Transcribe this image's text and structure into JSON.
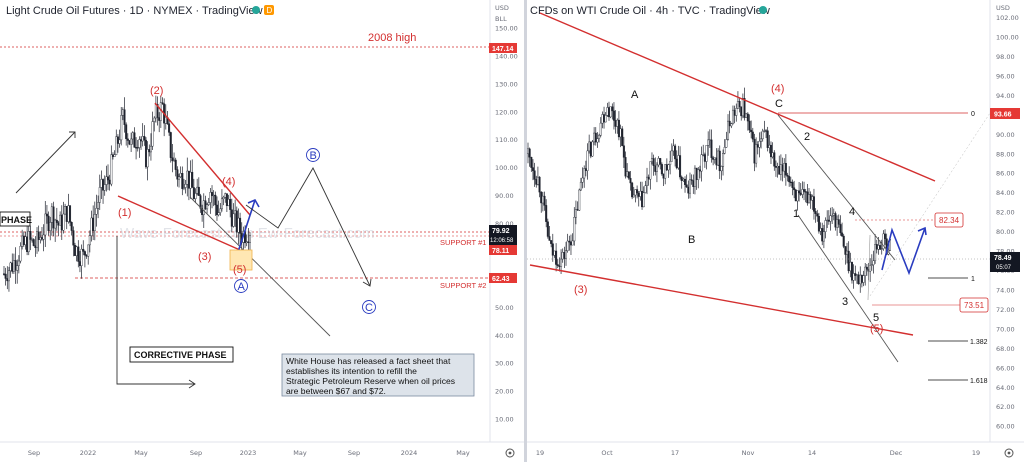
{
  "left_chart": {
    "title": "Light Crude Oil Futures · 1D · NYMEX · TradingView",
    "currency": "USD",
    "axis_mode": "BLL",
    "annotation_2008": "2008 high",
    "label_corrective": "CORRECTIVE PHASE",
    "label_phase": "PHASE",
    "support_1": "SUPPORT #1",
    "support_2": "SUPPORT #2",
    "price_badge_top": "147.14",
    "price_badge_last": "79.92",
    "countdown": "12:06:58",
    "price_badge_support": "78.11",
    "price_badge_low": "62.43",
    "watermark": "Wave-Forecast.com Ew-Forecast.com",
    "note": [
      "White House has released a fact sheet that",
      "establishes its intention to refill the",
      "Strategic Petroleum Reserve when oil prices",
      "are between $67 and $72."
    ],
    "wave_labels": {
      "w1": "(1)",
      "w2": "(2)",
      "w3": "(3)",
      "w4": "(4)",
      "w5": "(5)",
      "A": "A",
      "B": "B",
      "C": "C"
    }
  },
  "right_chart": {
    "title": "CFDs on WTI Crude Oil · 4h · TVC · TradingView",
    "currency": "USD",
    "price_badge_top": "93.66",
    "price_badge_last": "78.49",
    "countdown": "05:07",
    "box_1": "82.34",
    "box_2": "73.51",
    "fib_levels": [
      "0",
      "1",
      "1.382",
      "1.618"
    ],
    "wave_labels": {
      "w3": "(3)",
      "w4": "(4)",
      "w5": "(5)",
      "A": "A",
      "B": "B",
      "C": "C",
      "i1": "1",
      "i2": "2",
      "i3": "3",
      "i4": "4",
      "i5": "5"
    }
  },
  "chart_data": [
    {
      "type": "line",
      "title": "Light Crude Oil Futures · 1D · NYMEX · TradingView",
      "ylabel": "USD",
      "ylim": [
        0,
        160
      ],
      "y_ticks": [
        10,
        20,
        30,
        40,
        50,
        60,
        70,
        80,
        90,
        100,
        110,
        120,
        130,
        140,
        150
      ],
      "x_ticks": [
        "Sep",
        "2022",
        "May",
        "Sep",
        "2023",
        "May",
        "Sep",
        "2024",
        "May"
      ],
      "series": [
        {
          "values": [
            62,
            65,
            70,
            74,
            72,
            78,
            84,
            79,
            85,
            71,
            68,
            78,
            90,
            95,
            105,
            118,
            108,
            112,
            103,
            118,
            122,
            106,
            96,
            98,
            90,
            87,
            92,
            84,
            89,
            81,
            76,
            78
          ]
        }
      ],
      "levels": [
        {
          "label": "2008 high",
          "value": 147.14
        },
        {
          "label": "SUPPORT #1",
          "value": 78.11
        },
        {
          "label": "SUPPORT #2",
          "value": 62.43
        }
      ]
    },
    {
      "type": "line",
      "title": "CFDs on WTI Crude Oil · 4h · TVC · TradingView",
      "ylabel": "USD",
      "ylim": [
        57,
        104
      ],
      "y_ticks": [
        60,
        62,
        64,
        66,
        68,
        70,
        72,
        74,
        76,
        78,
        80,
        82,
        84,
        86,
        88,
        90,
        92,
        94,
        96,
        98,
        100,
        102
      ],
      "x_ticks": [
        "19",
        "Oct",
        "17",
        "Nov",
        "14",
        "Dec",
        "19"
      ],
      "series": [
        {
          "values": [
            88,
            85,
            78,
            77,
            80,
            87,
            90,
            93,
            91,
            84,
            83,
            87,
            86,
            88,
            84,
            86,
            89,
            87,
            92,
            93,
            88,
            90,
            86,
            86,
            83,
            84,
            80,
            82,
            78,
            75,
            76,
            79,
            78.5
          ]
        }
      ],
      "levels": [
        {
          "label": "0",
          "value": 93.66
        },
        {
          "label": "1",
          "value": 76.5
        },
        {
          "label": "1.382",
          "value": 70
        },
        {
          "label": "1.618",
          "value": 65.8
        }
      ]
    }
  ]
}
